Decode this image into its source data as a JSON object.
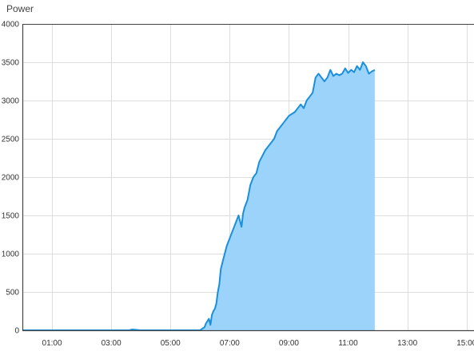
{
  "chart_data": {
    "type": "area",
    "title": "Power",
    "xlabel": "",
    "ylabel": "",
    "x_unit": "hour",
    "xlim": [
      0,
      15.25
    ],
    "ylim": [
      0,
      4000
    ],
    "x_ticks": [
      1,
      3,
      5,
      7,
      9,
      11,
      13,
      15
    ],
    "x_tick_labels": [
      "01:00",
      "03:00",
      "05:00",
      "07:00",
      "09:00",
      "11:00",
      "13:00",
      "15:00"
    ],
    "y_ticks": [
      0,
      500,
      1000,
      1500,
      2000,
      2500,
      3000,
      3500,
      4000
    ],
    "y_tick_labels": [
      "0",
      "500",
      "1000",
      "1500",
      "2000",
      "2500",
      "3000",
      "3500",
      "4000"
    ],
    "grid": true,
    "legend": "none",
    "colors": {
      "line": "#1a8fdd",
      "fill": "#9bd3fb"
    },
    "series": [
      {
        "x": [
          0.0,
          1.0,
          2.0,
          3.0,
          3.6,
          3.7,
          4.0,
          5.0,
          6.0,
          6.15,
          6.2,
          6.3,
          6.35,
          6.4,
          6.45,
          6.5,
          6.55,
          6.6,
          6.65,
          6.7,
          6.8,
          6.9,
          7.0,
          7.1,
          7.2,
          7.3,
          7.4,
          7.45,
          7.5,
          7.6,
          7.7,
          7.8,
          7.9,
          8.0,
          8.2,
          8.4,
          8.5,
          8.6,
          8.8,
          9.0,
          9.2,
          9.4,
          9.5,
          9.6,
          9.7,
          9.8,
          9.9,
          10.0,
          10.1,
          10.2,
          10.3,
          10.4,
          10.5,
          10.6,
          10.7,
          10.8,
          10.9,
          11.0,
          11.1,
          11.2,
          11.3,
          11.4,
          11.5,
          11.6,
          11.7,
          11.8,
          11.9
        ],
        "y": [
          0,
          0,
          0,
          0,
          0,
          10,
          0,
          0,
          0,
          40,
          90,
          150,
          70,
          200,
          250,
          280,
          350,
          500,
          600,
          800,
          950,
          1100,
          1200,
          1300,
          1400,
          1500,
          1350,
          1520,
          1600,
          1700,
          1900,
          2000,
          2050,
          2200,
          2350,
          2450,
          2500,
          2600,
          2700,
          2800,
          2850,
          2950,
          2900,
          3000,
          3050,
          3100,
          3300,
          3350,
          3300,
          3250,
          3300,
          3400,
          3320,
          3350,
          3330,
          3350,
          3420,
          3360,
          3400,
          3370,
          3450,
          3400,
          3500,
          3450,
          3350,
          3380,
          3400
        ]
      }
    ]
  }
}
